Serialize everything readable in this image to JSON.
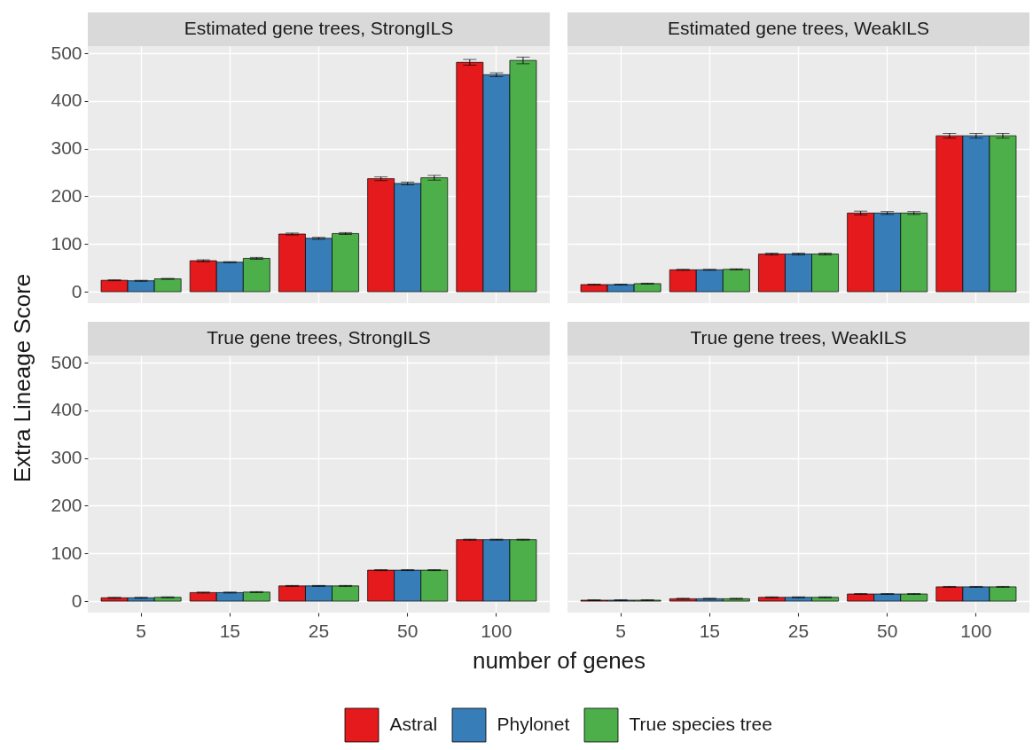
{
  "chart_data": [
    {
      "type": "bar",
      "title": "Estimated gene trees, StrongILS",
      "categories": [
        "5",
        "15",
        "25",
        "50",
        "100"
      ],
      "series": [
        {
          "name": "Astral",
          "color": "#e41a1c",
          "values": [
            24,
            65,
            121,
            237,
            481
          ],
          "errors": [
            1,
            2,
            2,
            4,
            6
          ]
        },
        {
          "name": "Phylonet",
          "color": "#377eb8",
          "values": [
            23,
            62,
            112,
            227,
            455
          ],
          "errors": [
            1,
            1,
            2,
            3,
            4
          ]
        },
        {
          "name": "True species tree",
          "color": "#4daf4a",
          "values": [
            27,
            70,
            122,
            239,
            485
          ],
          "errors": [
            1,
            2,
            2,
            5,
            7
          ]
        }
      ],
      "ylim": [
        -24,
        515
      ],
      "yticks": [
        0,
        100,
        200,
        300,
        400,
        500
      ],
      "ylabel": "Extra Lineage Score",
      "grid": true,
      "tick_labels": "y",
      "legend": "bottom"
    },
    {
      "type": "bar",
      "title": "Estimated gene trees, WeakILS",
      "categories": [
        "5",
        "15",
        "25",
        "50",
        "100"
      ],
      "series": [
        {
          "name": "Astral",
          "color": "#e41a1c",
          "values": [
            15,
            46,
            79,
            165,
            327
          ],
          "errors": [
            1,
            1,
            2,
            4,
            5
          ]
        },
        {
          "name": "Phylonet",
          "color": "#377eb8",
          "values": [
            15,
            46,
            79,
            165,
            327
          ],
          "errors": [
            1,
            1,
            2,
            3,
            5
          ]
        },
        {
          "name": "True species tree",
          "color": "#4daf4a",
          "values": [
            17,
            47,
            79,
            165,
            327
          ],
          "errors": [
            1,
            1,
            2,
            3,
            5
          ]
        }
      ],
      "ylim": [
        -24,
        515
      ],
      "yticks": [
        0,
        100,
        200,
        300,
        400,
        500
      ],
      "grid": true,
      "tick_labels": false
    },
    {
      "type": "bar",
      "title": "True gene trees, StrongILS",
      "categories": [
        "5",
        "15",
        "25",
        "50",
        "100"
      ],
      "series": [
        {
          "name": "Astral",
          "color": "#e41a1c",
          "values": [
            7,
            18,
            32,
            65,
            129
          ],
          "errors": [
            1,
            1,
            1,
            1,
            1
          ]
        },
        {
          "name": "Phylonet",
          "color": "#377eb8",
          "values": [
            7,
            18,
            32,
            65,
            129
          ],
          "errors": [
            1,
            1,
            1,
            1,
            1
          ]
        },
        {
          "name": "True species tree",
          "color": "#4daf4a",
          "values": [
            8,
            19,
            32,
            65,
            129
          ],
          "errors": [
            1,
            1,
            1,
            1,
            1
          ]
        }
      ],
      "ylim": [
        -24,
        515
      ],
      "yticks": [
        0,
        100,
        200,
        300,
        400,
        500
      ],
      "xlabel": "number of genes",
      "grid": true
    },
    {
      "type": "bar",
      "title": "True gene trees, WeakILS",
      "categories": [
        "5",
        "15",
        "25",
        "50",
        "100"
      ],
      "series": [
        {
          "name": "Astral",
          "color": "#e41a1c",
          "values": [
            2,
            5,
            8,
            15,
            30
          ],
          "errors": [
            1,
            1,
            1,
            1,
            1
          ]
        },
        {
          "name": "Phylonet",
          "color": "#377eb8",
          "values": [
            2,
            5,
            8,
            15,
            30
          ],
          "errors": [
            1,
            1,
            1,
            1,
            1
          ]
        },
        {
          "name": "True species tree",
          "color": "#4daf4a",
          "values": [
            2,
            5,
            8,
            15,
            30
          ],
          "errors": [
            1,
            1,
            1,
            1,
            1
          ]
        }
      ],
      "ylim": [
        -24,
        515
      ],
      "yticks": [
        0,
        100,
        200,
        300,
        400,
        500
      ],
      "grid": true,
      "tick_labels": "x"
    }
  ]
}
